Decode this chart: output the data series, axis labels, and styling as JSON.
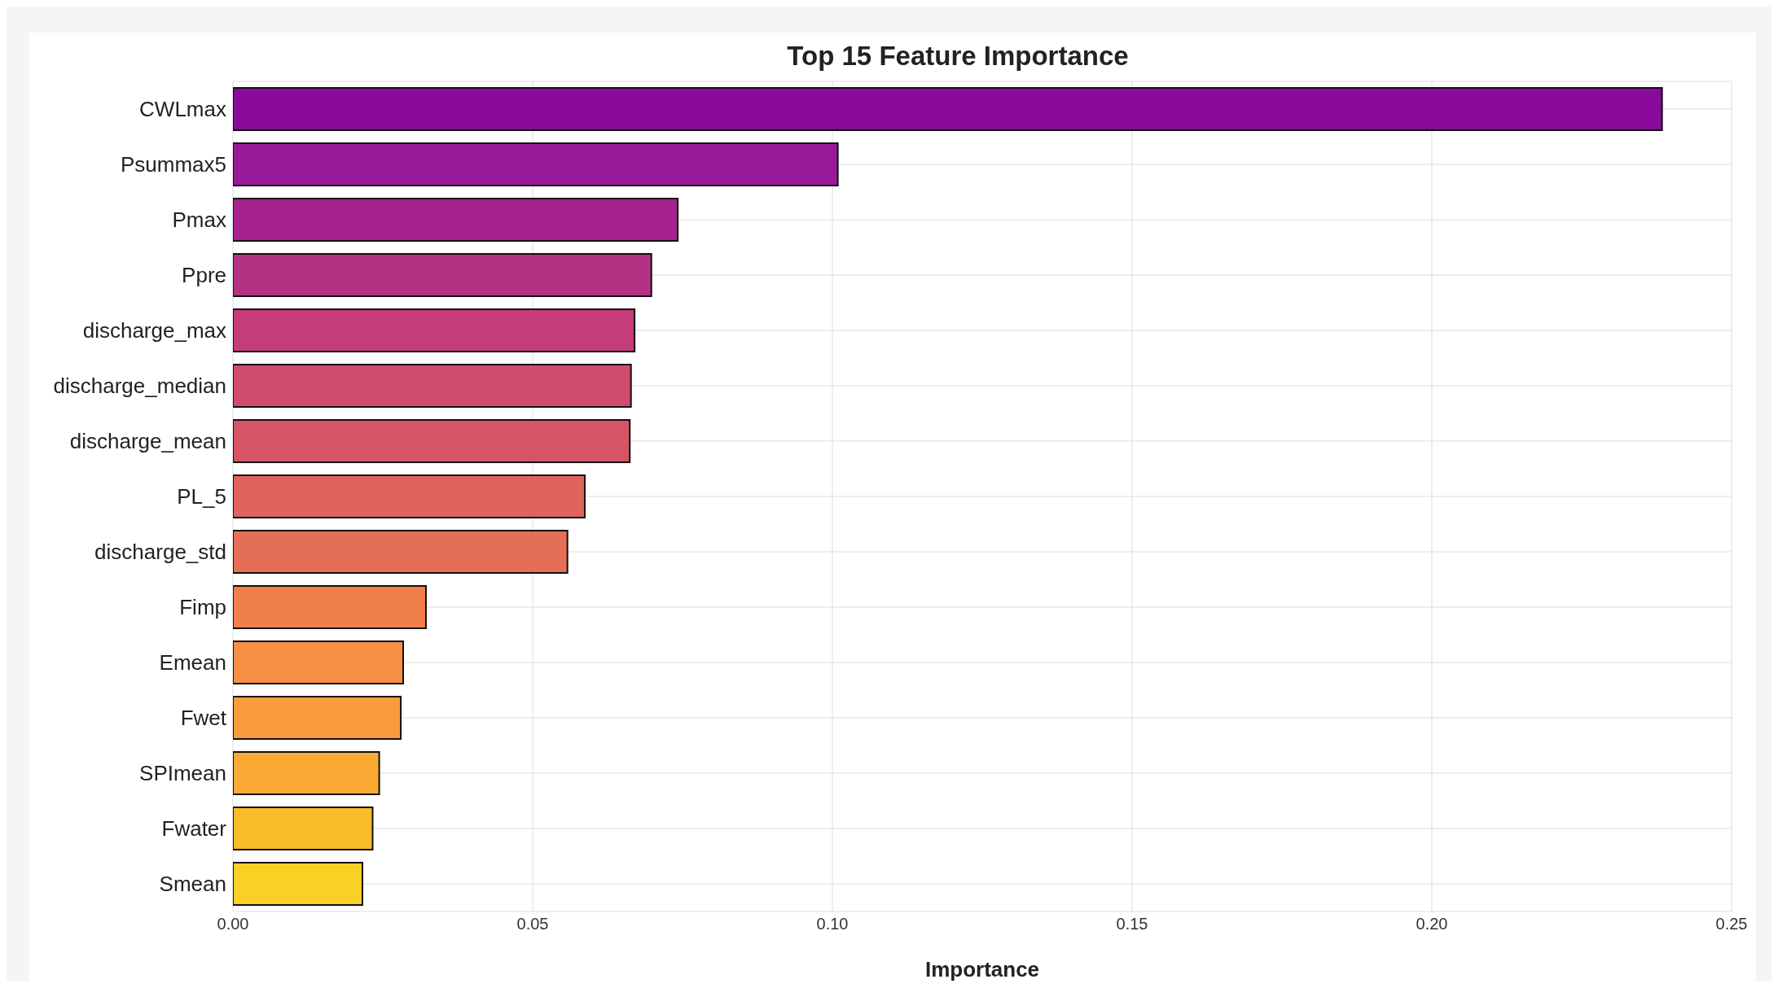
{
  "chart_data": {
    "type": "bar",
    "orientation": "horizontal",
    "title": "Top 15 Feature Importance",
    "xlabel": "Importance",
    "categories": [
      "CWLmax",
      "Psummax5",
      "Pmax",
      "Ppre",
      "discharge_max",
      "discharge_median",
      "discharge_mean",
      "PL_5",
      "discharge_std",
      "Fimp",
      "Emean",
      "Fwet",
      "SPImean",
      "Fwater",
      "Smean"
    ],
    "values": [
      0.2384,
      0.1009,
      0.0742,
      0.0698,
      0.067,
      0.0664,
      0.0662,
      0.0587,
      0.0558,
      0.0322,
      0.0284,
      0.028,
      0.0244,
      0.0233,
      0.0216
    ],
    "colors": [
      "#8a0a9c",
      "#981a98",
      "#a6228f",
      "#b43283",
      "#c43c78",
      "#cf4c6f",
      "#d65466",
      "#e0635e",
      "#e56f56",
      "#f07f4b",
      "#f68f44",
      "#f99c3d",
      "#f9ab35",
      "#f9bc2b",
      "#f8d124"
    ],
    "xlim": [
      0,
      0.25
    ],
    "xticks": [
      {
        "value": 0,
        "label": "0.00"
      },
      {
        "value": 0.05,
        "label": "0.05"
      },
      {
        "value": 0.1,
        "label": "0.10"
      },
      {
        "value": 0.15,
        "label": "0.15"
      },
      {
        "value": 0.2,
        "label": "0.20"
      },
      {
        "value": 0.25,
        "label": "0.25"
      }
    ],
    "grid": true
  }
}
